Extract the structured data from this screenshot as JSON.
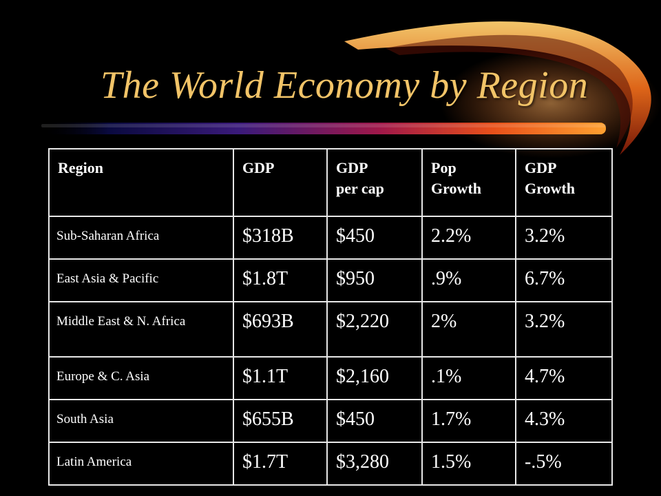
{
  "slide": {
    "title": "The World Economy by Region",
    "colors": {
      "background": "#000000",
      "title": "#f2c468",
      "table_text": "#ffffff",
      "table_border": "#e8e8e8"
    }
  },
  "table": {
    "headers": [
      {
        "line1": "Region",
        "line2": ""
      },
      {
        "line1": "GDP",
        "line2": ""
      },
      {
        "line1": "GDP",
        "line2": "per cap"
      },
      {
        "line1": "Pop",
        "line2": "Growth"
      },
      {
        "line1": "GDP",
        "line2": "Growth"
      }
    ],
    "rows": [
      {
        "region": "Sub-Saharan Africa",
        "gdp": "$318B",
        "gdp_per_cap": "$450",
        "pop_growth": "2.2%",
        "gdp_growth": "3.2%"
      },
      {
        "region": "East Asia & Pacific",
        "gdp": "$1.8T",
        "gdp_per_cap": "$950",
        "pop_growth": ".9%",
        "gdp_growth": "6.7%"
      },
      {
        "region": "Middle East & N. Africa",
        "gdp": "$693B",
        "gdp_per_cap": "$2,220",
        "pop_growth": "2%",
        "gdp_growth": "3.2%"
      },
      {
        "region": "Europe & C. Asia",
        "gdp": "$1.1T",
        "gdp_per_cap": "$2,160",
        "pop_growth": ".1%",
        "gdp_growth": "4.7%"
      },
      {
        "region": "South Asia",
        "gdp": "$655B",
        "gdp_per_cap": "$450",
        "pop_growth": "1.7%",
        "gdp_growth": "4.3%"
      },
      {
        "region": "Latin America",
        "gdp": "$1.7T",
        "gdp_per_cap": "$3,280",
        "pop_growth": "1.5%",
        "gdp_growth": "-.5%"
      }
    ]
  }
}
